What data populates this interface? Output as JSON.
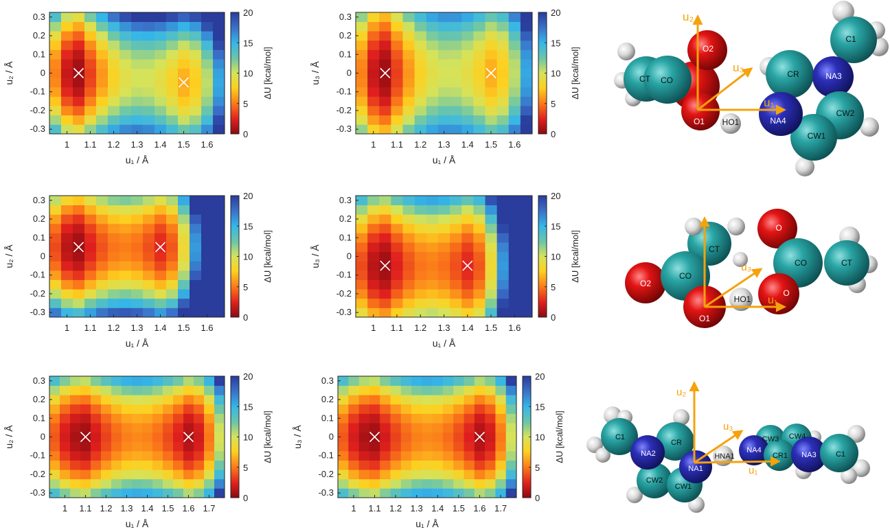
{
  "colorbar": {
    "label": "ΔU [kcal/mol]",
    "min": 0,
    "max": 20,
    "ticks": [
      "0",
      "5",
      "10",
      "15",
      "20"
    ],
    "stops": [
      "#8b0a10",
      "#e0201e",
      "#fb7a1a",
      "#fdd020",
      "#d5e35a",
      "#6cc6a8",
      "#35b6e8",
      "#3a6ec8",
      "#2a3c9c"
    ]
  },
  "chart_data": [
    {
      "type": "heatmap",
      "id": "p11",
      "xlabel": "u₁ / Å",
      "ylabel": "u₂ / Å",
      "x_ticks": [
        "1",
        "1.1",
        "1.2",
        "1.3",
        "1.4",
        "1.5",
        "1.6"
      ],
      "y_ticks": [
        "0.3",
        "0.2",
        "0.1",
        "0",
        "-0.1",
        "-0.2",
        "-0.3"
      ],
      "xlim": [
        0.925,
        1.675
      ],
      "ylim": [
        -0.325,
        0.325
      ],
      "nx": 15,
      "ny": 13,
      "minima": [
        {
          "x": 1.05,
          "y": 0.0,
          "e": 0.5
        },
        {
          "x": 1.5,
          "y": -0.05,
          "e": 6.5
        }
      ],
      "barrier": 6.0,
      "bx": 0.8,
      "by": 95,
      "wall_right": 0,
      "wall_left": 3.0,
      "markers": [
        {
          "x": 1.05,
          "y": 0.0
        },
        {
          "x": 1.5,
          "y": -0.05
        }
      ]
    },
    {
      "type": "heatmap",
      "id": "p12",
      "xlabel": "u₁ / Å",
      "ylabel": "u₃ / Å",
      "x_ticks": [
        "1",
        "1.1",
        "1.2",
        "1.3",
        "1.4",
        "1.5",
        "1.6"
      ],
      "y_ticks": [
        "0.3",
        "0.2",
        "0.1",
        "0",
        "-0.1",
        "-0.2",
        "-0.3"
      ],
      "xlim": [
        0.925,
        1.675
      ],
      "ylim": [
        -0.325,
        0.325
      ],
      "nx": 15,
      "ny": 13,
      "minima": [
        {
          "x": 1.05,
          "y": 0.0,
          "e": 0.5
        },
        {
          "x": 1.5,
          "y": 0.0,
          "e": 6.5
        }
      ],
      "barrier": 6.0,
      "bx": 0.8,
      "by": 70,
      "wall_right": 0,
      "wall_left": 3.0,
      "markers": [
        {
          "x": 1.05,
          "y": 0.0
        },
        {
          "x": 1.5,
          "y": 0.0
        }
      ]
    },
    {
      "type": "heatmap",
      "id": "p21",
      "xlabel": "u₁ / Å",
      "ylabel": "u₂ / Å",
      "x_ticks": [
        "1",
        "1.1",
        "1.2",
        "1.3",
        "1.4",
        "1.5",
        "1.6"
      ],
      "y_ticks": [
        "0.3",
        "0.2",
        "0.1",
        "0",
        "-0.1",
        "-0.2",
        "-0.3"
      ],
      "xlim": [
        0.925,
        1.675
      ],
      "ylim": [
        -0.325,
        0.325
      ],
      "nx": 15,
      "ny": 13,
      "minima": [
        {
          "x": 1.05,
          "y": 0.05,
          "e": 0.5
        },
        {
          "x": 1.4,
          "y": 0.05,
          "e": 2.5
        }
      ],
      "barrier": 3.5,
      "bx": 0.2,
      "by": 110,
      "wall_right": 1.5,
      "wall_left": 2.0,
      "markers": [
        {
          "x": 1.05,
          "y": 0.05
        },
        {
          "x": 1.4,
          "y": 0.05
        }
      ]
    },
    {
      "type": "heatmap",
      "id": "p22",
      "xlabel": "u₁ / Å",
      "ylabel": "u₃ / Å",
      "x_ticks": [
        "1",
        "1.1",
        "1.2",
        "1.3",
        "1.4",
        "1.5",
        "1.6"
      ],
      "y_ticks": [
        "0.3",
        "0.2",
        "0.1",
        "0",
        "-0.1",
        "-0.2",
        "-0.3"
      ],
      "xlim": [
        0.925,
        1.675
      ],
      "ylim": [
        -0.325,
        0.325
      ],
      "nx": 15,
      "ny": 13,
      "minima": [
        {
          "x": 1.05,
          "y": -0.05,
          "e": 0.5
        },
        {
          "x": 1.4,
          "y": -0.05,
          "e": 2.5
        }
      ],
      "barrier": 3.5,
      "bx": 0.2,
      "by": 85,
      "wall_right": 1.5,
      "wall_left": 2.0,
      "markers": [
        {
          "x": 1.05,
          "y": -0.05
        },
        {
          "x": 1.4,
          "y": -0.05
        }
      ]
    },
    {
      "type": "heatmap",
      "id": "p31",
      "xlabel": "u₁ / Å",
      "ylabel": "u₂ / Å",
      "x_ticks": [
        "1",
        "1.1",
        "1.2",
        "1.3",
        "1.4",
        "1.5",
        "1.6",
        "1.7"
      ],
      "y_ticks": [
        "0.3",
        "0.2",
        "0.1",
        "0",
        "-0.1",
        "-0.2",
        "-0.3"
      ],
      "xlim": [
        0.925,
        1.775
      ],
      "ylim": [
        -0.325,
        0.325
      ],
      "nx": 17,
      "ny": 13,
      "minima": [
        {
          "x": 1.1,
          "y": 0.0,
          "e": 0.5
        },
        {
          "x": 1.6,
          "y": 0.0,
          "e": 0.9
        }
      ],
      "barrier": 4.5,
      "bx": 0.9,
      "by": 110,
      "wall_right": 0,
      "wall_left": 1.0,
      "markers": [
        {
          "x": 1.1,
          "y": 0.0
        },
        {
          "x": 1.6,
          "y": 0.0
        }
      ]
    },
    {
      "type": "heatmap",
      "id": "p32",
      "xlabel": "u₁ / Å",
      "ylabel": "u₃ / Å",
      "x_ticks": [
        "1",
        "1.1",
        "1.2",
        "1.3",
        "1.4",
        "1.5",
        "1.6",
        "1.7"
      ],
      "y_ticks": [
        "0.3",
        "0.2",
        "0.1",
        "0",
        "-0.1",
        "-0.2",
        "-0.3"
      ],
      "xlim": [
        0.925,
        1.775
      ],
      "ylim": [
        -0.325,
        0.325
      ],
      "nx": 17,
      "ny": 13,
      "minima": [
        {
          "x": 1.1,
          "y": 0.0,
          "e": 0.5
        },
        {
          "x": 1.6,
          "y": 0.0,
          "e": 0.9
        }
      ],
      "barrier": 4.5,
      "bx": 0.9,
      "by": 110,
      "wall_right": 0,
      "wall_left": 1.0,
      "markers": [
        {
          "x": 1.1,
          "y": 0.0
        },
        {
          "x": 1.6,
          "y": 0.0
        }
      ]
    }
  ],
  "molecules": [
    {
      "id": "m1",
      "axes": {
        "u1": "u₁",
        "u2": "u₂",
        "u3": "u₃"
      },
      "atoms": {
        "CT": "CT",
        "CO": "CO",
        "O2": "O2",
        "O1": "O1",
        "HO1": "HO1",
        "CR": "CR",
        "NA3": "NA3",
        "C1": "C1",
        "NA4": "NA4",
        "CW1": "CW1",
        "CW2": "CW2"
      }
    },
    {
      "id": "m2",
      "axes": {
        "u1": "u₁",
        "u2": "u₂",
        "u3": "u₃"
      },
      "atoms": {
        "CT_a": "CT",
        "O2": "O2",
        "CO_a": "CO",
        "O1": "O1",
        "HO1": "HO1",
        "O_top": "O",
        "CO_b": "CO",
        "CT_b": "CT",
        "O_bot": "O"
      }
    },
    {
      "id": "m3",
      "axes": {
        "u1": "u₁",
        "u2": "u₂",
        "u3": "u₃"
      },
      "atoms": {
        "C1_a": "C1",
        "NA2": "NA2",
        "CR": "CR",
        "NA1": "NA1",
        "CW2": "CW2",
        "CW1": "CW1",
        "HNA1": "HNA1",
        "NA4": "NA4",
        "CW3": "CW3",
        "CW4": "CW4",
        "CR1": "CR1",
        "NA3": "NA3",
        "C1_b": "C1"
      }
    }
  ]
}
